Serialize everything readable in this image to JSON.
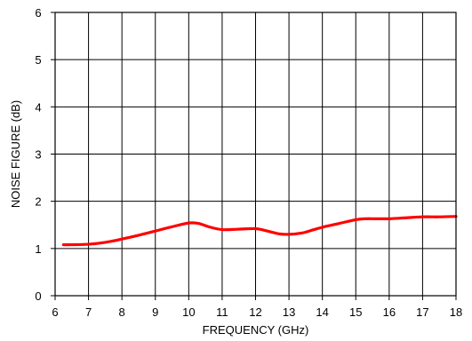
{
  "chart_data": {
    "type": "line",
    "title": "",
    "xlabel": "FREQUENCY (GHz)",
    "ylabel": "NOISE FIGURE (dB)",
    "xlim": [
      6,
      18
    ],
    "ylim": [
      0,
      6
    ],
    "xticks": [
      6,
      7,
      8,
      9,
      10,
      11,
      12,
      13,
      14,
      15,
      16,
      17,
      18
    ],
    "yticks": [
      0,
      1,
      2,
      3,
      4,
      5,
      6
    ],
    "grid": true,
    "legend": "none",
    "series": [
      {
        "color": "#ff0000",
        "x": [
          6.25,
          6.5,
          7.0,
          7.5,
          8.0,
          8.5,
          9.0,
          9.5,
          10.0,
          10.3,
          10.6,
          11.0,
          11.5,
          12.0,
          12.3,
          12.7,
          13.0,
          13.4,
          13.7,
          14.0,
          14.5,
          15.0,
          15.3,
          15.6,
          16.0,
          16.5,
          17.0,
          17.5,
          18.0
        ],
        "y": [
          1.08,
          1.08,
          1.09,
          1.13,
          1.2,
          1.28,
          1.37,
          1.46,
          1.54,
          1.53,
          1.46,
          1.4,
          1.41,
          1.42,
          1.38,
          1.31,
          1.3,
          1.33,
          1.39,
          1.45,
          1.53,
          1.61,
          1.63,
          1.63,
          1.63,
          1.65,
          1.67,
          1.67,
          1.68
        ]
      }
    ]
  }
}
